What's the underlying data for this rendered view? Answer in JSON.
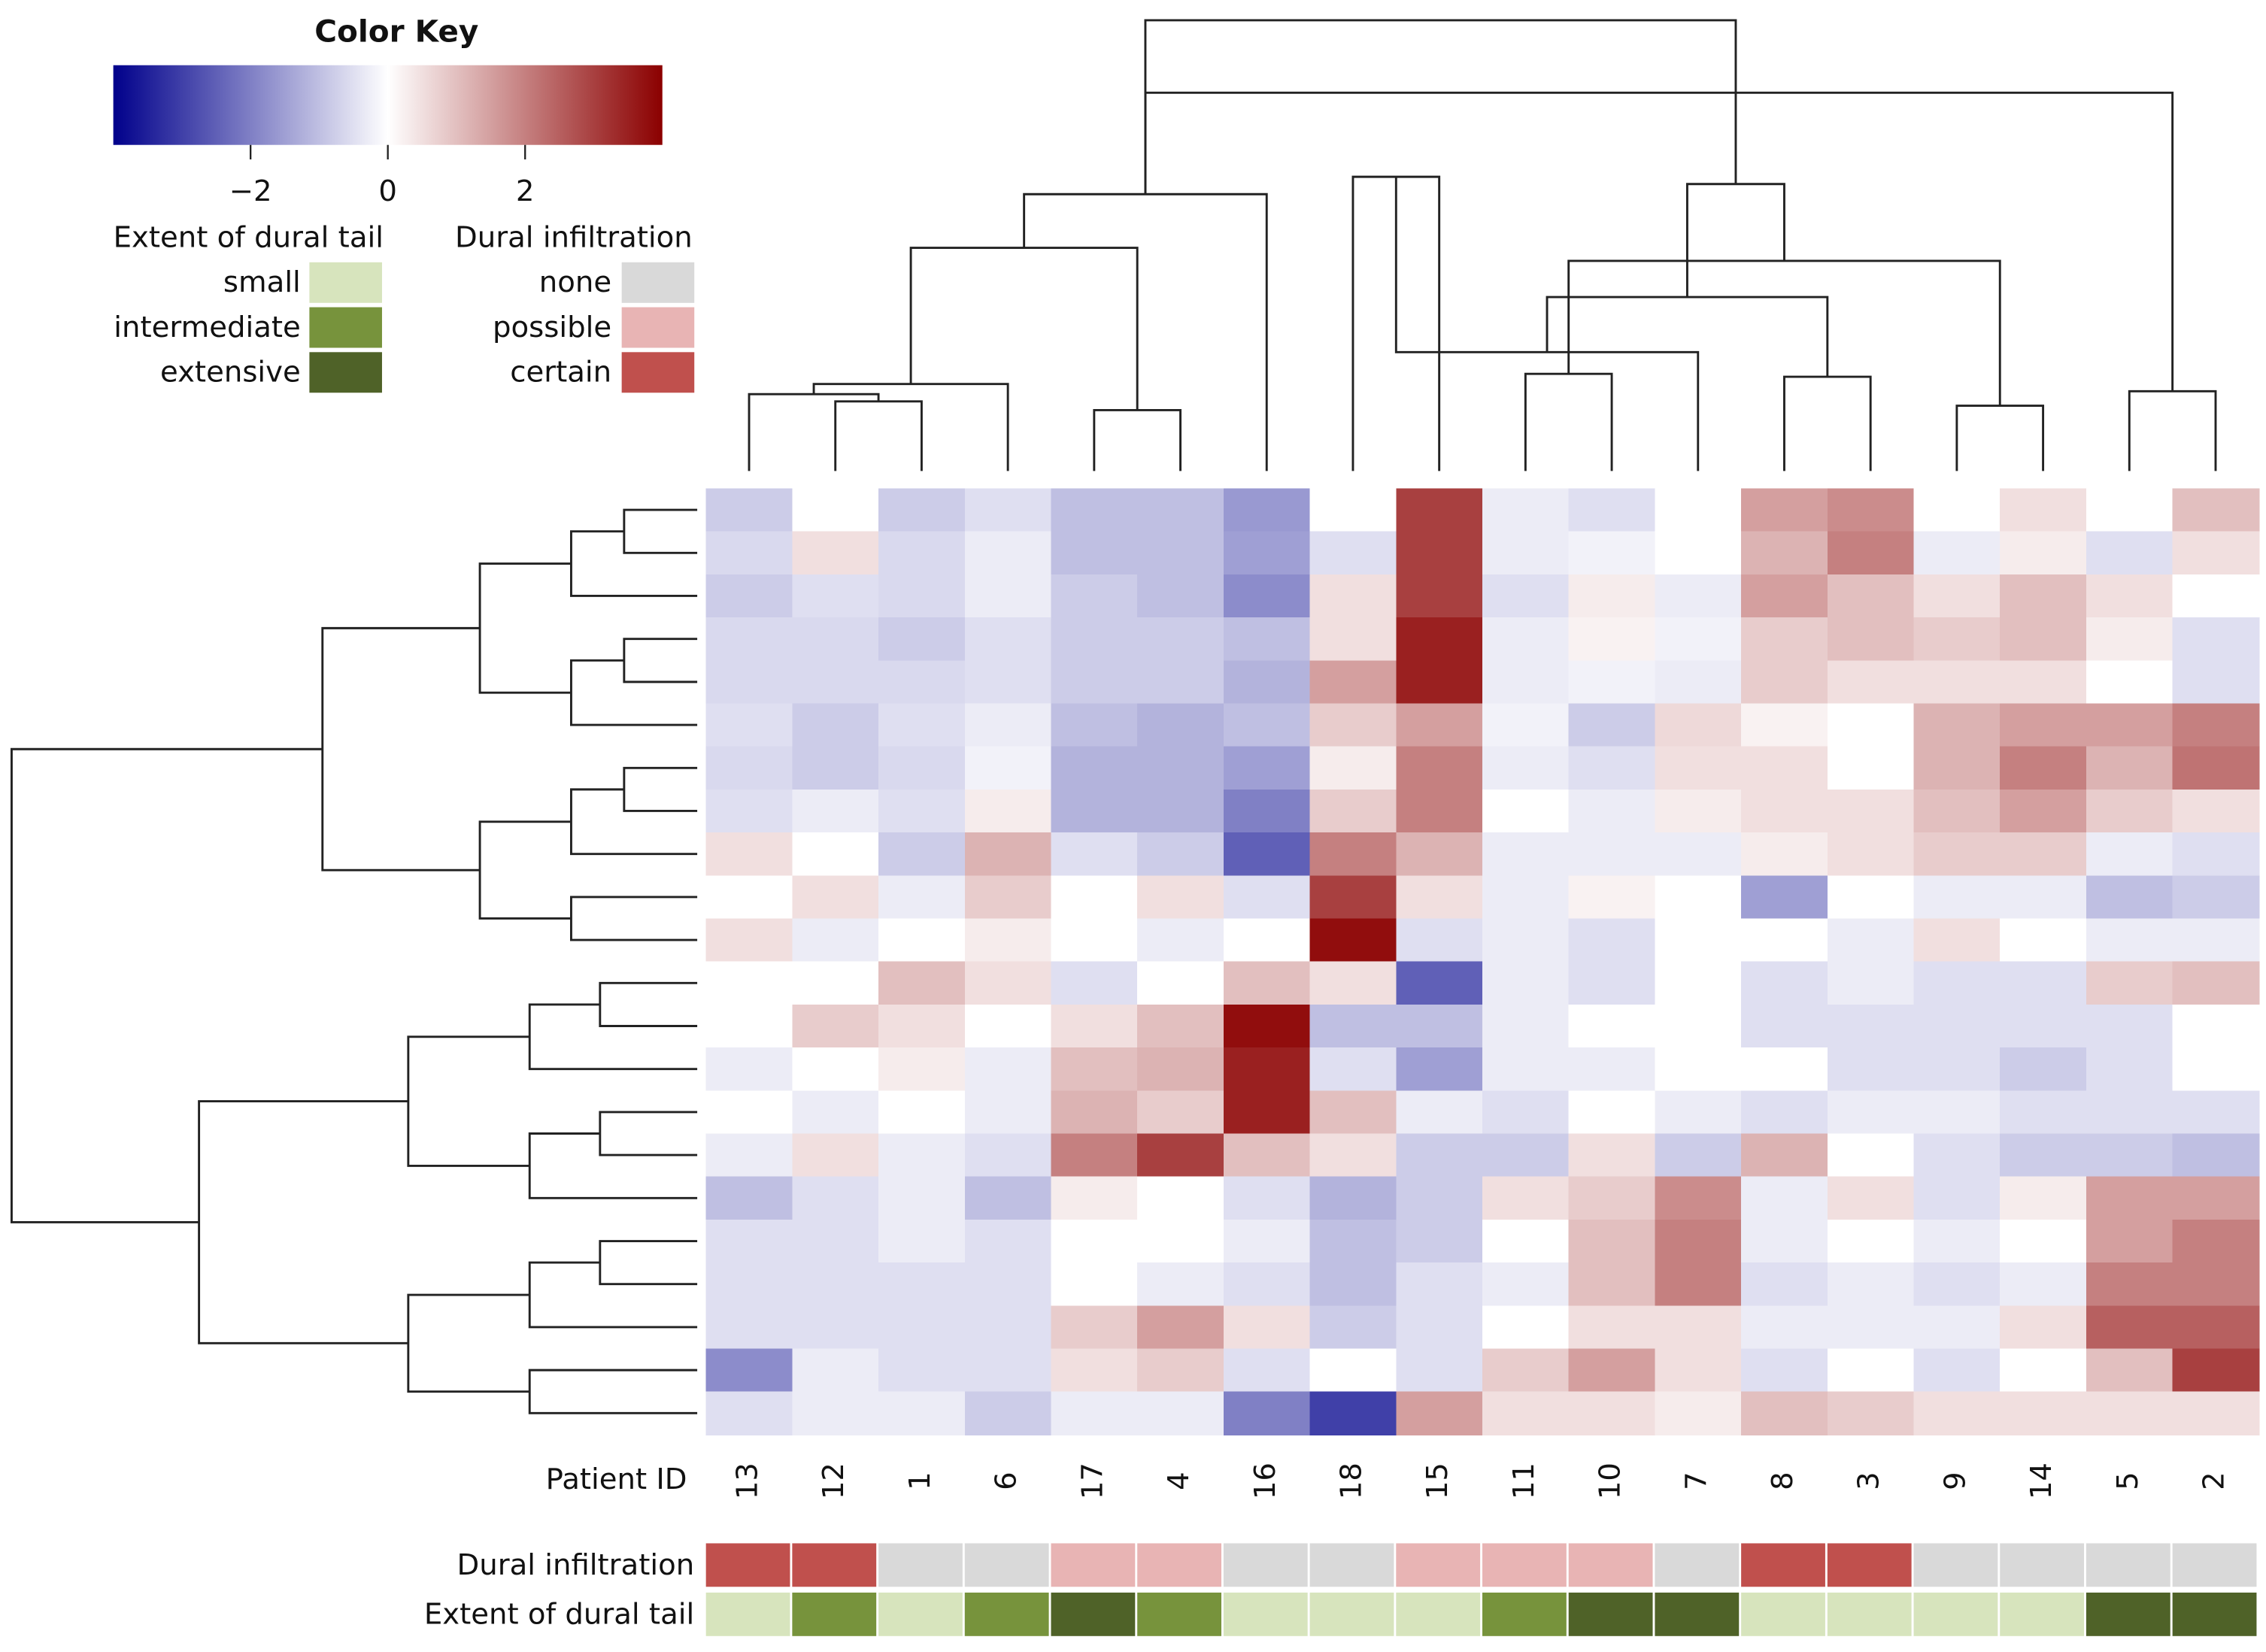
{
  "chart_data": {
    "type": "heatmap",
    "colorkey_title": "Color Key",
    "column_axis_label": "Patient ID",
    "columns": [
      "13",
      "12",
      "1",
      "6",
      "17",
      "4",
      "16",
      "18",
      "15",
      "11",
      "10",
      "7",
      "8",
      "3",
      "9",
      "14",
      "5",
      "2"
    ],
    "zlim": [
      -4,
      4
    ],
    "zticks": [
      {
        "value": -2,
        "label": "−2"
      },
      0,
      2
    ],
    "colors": {
      "low": "#00008b",
      "mid": "#ffffff",
      "high": "#8b0000"
    },
    "values": [
      [
        -0.8,
        0,
        -0.8,
        -0.5,
        -1,
        -1,
        -1.6,
        0,
        3,
        -0.3,
        -0.5,
        0,
        1.5,
        1.8,
        0,
        0.5,
        0,
        1
      ],
      [
        -0.6,
        0.5,
        -0.6,
        -0.3,
        -1,
        -1,
        -1.5,
        -0.5,
        3,
        -0.3,
        -0.2,
        0,
        1.2,
        2,
        -0.3,
        0.3,
        -0.5,
        0.5
      ],
      [
        -0.8,
        -0.5,
        -0.6,
        -0.3,
        -0.8,
        -1,
        -1.8,
        0.5,
        3,
        -0.5,
        0.3,
        -0.3,
        1.5,
        1,
        0.5,
        1,
        0.5,
        0
      ],
      [
        -0.6,
        -0.6,
        -0.8,
        -0.5,
        -0.8,
        -0.8,
        -1,
        0.5,
        3.5,
        -0.3,
        0.2,
        -0.2,
        0.8,
        1,
        0.8,
        1,
        0.3,
        -0.5
      ],
      [
        -0.6,
        -0.6,
        -0.6,
        -0.5,
        -0.8,
        -0.8,
        -1.2,
        1.5,
        3.5,
        -0.3,
        -0.2,
        -0.3,
        0.8,
        0.5,
        0.5,
        0.5,
        0,
        -0.5
      ],
      [
        -0.5,
        -0.8,
        -0.5,
        -0.3,
        -1,
        -1.2,
        -1,
        0.8,
        1.5,
        -0.2,
        -0.8,
        0.6,
        0.2,
        0,
        1.2,
        1.5,
        1.5,
        2
      ],
      [
        -0.6,
        -0.8,
        -0.6,
        -0.2,
        -1.2,
        -1.2,
        -1.5,
        0.3,
        2,
        -0.3,
        -0.5,
        0.5,
        0.5,
        0,
        1.2,
        2,
        1.2,
        2.2
      ],
      [
        -0.5,
        -0.3,
        -0.5,
        0.3,
        -1.2,
        -1.2,
        -2,
        0.8,
        2,
        0,
        -0.3,
        0.3,
        0.5,
        0.5,
        1,
        1.5,
        0.8,
        0.5
      ],
      [
        0.5,
        0,
        -0.8,
        1.2,
        -0.5,
        -0.8,
        -2.5,
        2,
        1.2,
        -0.3,
        -0.3,
        -0.3,
        0.3,
        0.5,
        0.8,
        0.8,
        -0.3,
        -0.5
      ],
      [
        0,
        0.5,
        -0.3,
        0.8,
        0,
        0.5,
        -0.5,
        3,
        0.5,
        -0.3,
        0.2,
        0,
        -1.5,
        0,
        -0.3,
        -0.3,
        -1,
        -0.8
      ],
      [
        0.5,
        -0.3,
        0,
        0.3,
        0,
        -0.3,
        0,
        3.8,
        -0.5,
        -0.3,
        -0.5,
        0,
        0,
        -0.3,
        0.5,
        0,
        -0.3,
        -0.3
      ],
      [
        0,
        0,
        1,
        0.5,
        -0.5,
        0,
        1,
        0.5,
        -2.5,
        -0.3,
        -0.5,
        0,
        -0.5,
        -0.3,
        -0.5,
        -0.5,
        0.8,
        1
      ],
      [
        0,
        0.8,
        0.5,
        0,
        0.5,
        1,
        3.8,
        -1,
        -1,
        -0.3,
        0,
        0,
        -0.5,
        -0.5,
        -0.5,
        -0.5,
        -0.5,
        0
      ],
      [
        -0.3,
        0,
        0.3,
        -0.3,
        1,
        1.2,
        3.5,
        -0.5,
        -1.5,
        -0.3,
        -0.3,
        0,
        0,
        -0.5,
        -0.5,
        -0.8,
        -0.5,
        0
      ],
      [
        0,
        -0.3,
        0,
        -0.3,
        1.2,
        0.8,
        3.5,
        1,
        -0.3,
        -0.5,
        0,
        -0.3,
        -0.5,
        -0.3,
        -0.3,
        -0.5,
        -0.5,
        -0.5
      ],
      [
        -0.3,
        0.5,
        -0.3,
        -0.5,
        2,
        3,
        1,
        0.5,
        -0.8,
        -0.8,
        0.5,
        -0.8,
        1.2,
        0,
        -0.5,
        -0.8,
        -0.8,
        -1
      ],
      [
        -1,
        -0.5,
        -0.3,
        -1,
        0.3,
        0,
        -0.5,
        -1.2,
        -0.8,
        0.5,
        0.8,
        1.8,
        -0.3,
        0.5,
        -0.5,
        0.3,
        1.5,
        1.5
      ],
      [
        -0.5,
        -0.5,
        -0.3,
        -0.5,
        0,
        0,
        -0.3,
        -1,
        -0.8,
        0,
        1,
        2,
        -0.3,
        0,
        -0.3,
        0,
        1.5,
        2
      ],
      [
        -0.5,
        -0.5,
        -0.5,
        -0.5,
        0,
        -0.3,
        -0.5,
        -1,
        -0.5,
        -0.3,
        1,
        2,
        -0.5,
        -0.3,
        -0.5,
        -0.3,
        2,
        2
      ],
      [
        -0.5,
        -0.5,
        -0.5,
        -0.5,
        0.8,
        1.5,
        0.5,
        -0.8,
        -0.5,
        0,
        0.5,
        0.5,
        -0.3,
        -0.3,
        -0.3,
        0.5,
        2.5,
        2.5
      ],
      [
        -1.8,
        -0.3,
        -0.5,
        -0.5,
        0.5,
        0.8,
        -0.5,
        0,
        -0.5,
        0.8,
        1.5,
        0.5,
        -0.5,
        0,
        -0.5,
        0,
        1,
        3
      ],
      [
        -0.5,
        -0.3,
        -0.3,
        -0.8,
        -0.3,
        -0.3,
        -2,
        -3,
        1.5,
        0.5,
        0.5,
        0.3,
        1,
        0.8,
        0.5,
        0.5,
        0.5,
        0.5
      ]
    ],
    "annotations": [
      {
        "name": "Dural infiltration",
        "levels": [
          "none",
          "possible",
          "certain"
        ],
        "colors": [
          "#d9d9d9",
          "#e8b4b4",
          "#c0504d"
        ],
        "values": [
          "certain",
          "certain",
          "none",
          "none",
          "possible",
          "possible",
          "none",
          "none",
          "possible",
          "possible",
          "possible",
          "none",
          "certain",
          "certain",
          "none",
          "none",
          "none",
          "none"
        ]
      },
      {
        "name": "Extent of dural tail",
        "levels": [
          "small",
          "intermediate",
          "extensive"
        ],
        "colors": [
          "#d7e4bd",
          "#77933c",
          "#4f6228"
        ],
        "values": [
          "small",
          "intermediate",
          "small",
          "intermediate",
          "extensive",
          "intermediate",
          "small",
          "small",
          "small",
          "intermediate",
          "extensive",
          "extensive",
          "small",
          "small",
          "small",
          "small",
          "extensive",
          "extensive"
        ]
      }
    ]
  }
}
